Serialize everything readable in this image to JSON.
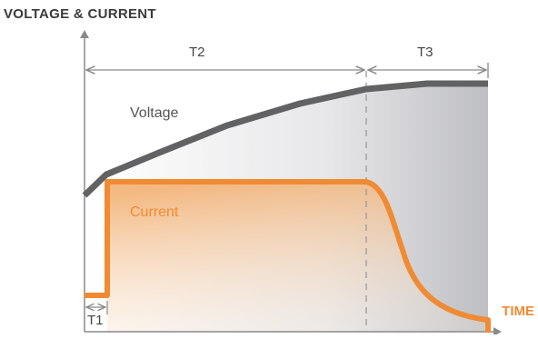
{
  "title": "VOLTAGE & CURRENT",
  "x_axis_label": "TIME",
  "series": {
    "voltage_label": "Voltage",
    "current_label": "Current"
  },
  "segments": {
    "t1": "T1",
    "t2": "T2",
    "t3": "T3"
  },
  "colors": {
    "voltage": "#616264",
    "current": "#F08A33",
    "axis": "#8a8a8a",
    "text": "#3a3a3a"
  }
}
